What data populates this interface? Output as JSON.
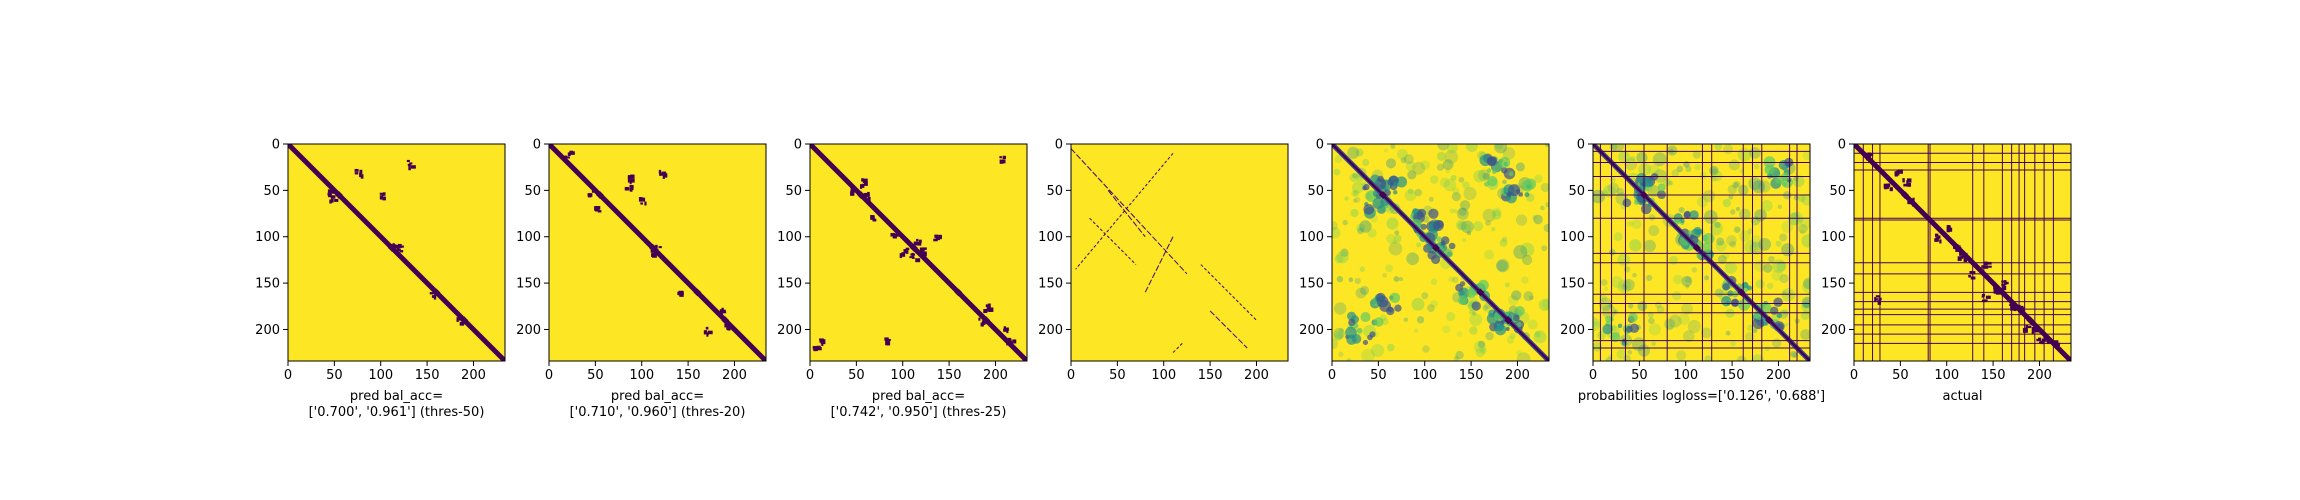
{
  "colors": {
    "background": "#fde725",
    "low": "#440154",
    "mid1": "#3b528b",
    "mid2": "#21918c",
    "mid3": "#5ec962",
    "axis": "#000000"
  },
  "chart_data": [
    {
      "type": "heatmap",
      "panel": "pred_thres50",
      "size": 234,
      "xlim": [
        0,
        234
      ],
      "ylim": [
        234,
        0
      ],
      "xticks": [
        "0",
        "50",
        "100",
        "150",
        "200"
      ],
      "yticks": [
        "0",
        "50",
        "100",
        "150",
        "200"
      ],
      "xlabel_lines": [
        "pred bal_acc=",
        "['0.700', '0.961'] (thres-50)"
      ],
      "metric_label": "bal_acc",
      "metric_values": [
        0.7,
        0.961
      ],
      "threshold": 50,
      "diagonal_band": true,
      "blobs": [
        [
          45,
          52
        ],
        [
          48,
          58
        ],
        [
          100,
          55
        ],
        [
          115,
          108
        ],
        [
          118,
          112
        ],
        [
          155,
          160
        ],
        [
          185,
          190
        ],
        [
          130,
          20
        ],
        [
          75,
          30
        ]
      ],
      "grid_lines": [],
      "cmap": "binary"
    },
    {
      "type": "heatmap",
      "panel": "pred_thres20",
      "size": 234,
      "xlim": [
        0,
        234
      ],
      "ylim": [
        234,
        0
      ],
      "xticks": [
        "0",
        "50",
        "100",
        "150",
        "200"
      ],
      "yticks": [
        "0",
        "50",
        "100",
        "150",
        "200"
      ],
      "xlabel_lines": [
        "pred bal_acc=",
        "['0.710', '0.960'] (thres-20)"
      ],
      "metric_label": "bal_acc",
      "metric_values": [
        0.71,
        0.96
      ],
      "threshold": 20,
      "diagonal_band": true,
      "blobs": [
        [
          20,
          10
        ],
        [
          45,
          50
        ],
        [
          50,
          70
        ],
        [
          85,
          35
        ],
        [
          85,
          45
        ],
        [
          100,
          60
        ],
        [
          112,
          115
        ],
        [
          115,
          112
        ],
        [
          140,
          160
        ],
        [
          185,
          180
        ],
        [
          190,
          195
        ],
        [
          120,
          30
        ],
        [
          170,
          200
        ]
      ],
      "grid_lines": [],
      "cmap": "binary"
    },
    {
      "type": "heatmap",
      "panel": "pred_thres25",
      "size": 234,
      "xlim": [
        0,
        234
      ],
      "ylim": [
        234,
        0
      ],
      "xticks": [
        "0",
        "50",
        "100",
        "150",
        "200"
      ],
      "yticks": [
        "0",
        "50",
        "100",
        "150",
        "200"
      ],
      "xlabel_lines": [
        "pred bal_acc=",
        "['0.742', '0.950'] (thres-25)"
      ],
      "metric_label": "bal_acc",
      "metric_values": [
        0.742,
        0.95
      ],
      "threshold": 25,
      "diagonal_band": true,
      "blobs": [
        [
          45,
          50
        ],
        [
          60,
          55
        ],
        [
          55,
          40
        ],
        [
          65,
          80
        ],
        [
          90,
          95
        ],
        [
          100,
          115
        ],
        [
          110,
          120
        ],
        [
          115,
          105
        ],
        [
          120,
          115
        ],
        [
          135,
          100
        ],
        [
          80,
          210
        ],
        [
          190,
          175
        ],
        [
          185,
          190
        ],
        [
          210,
          200
        ],
        [
          205,
          15
        ],
        [
          215,
          210
        ],
        [
          10,
          210
        ],
        [
          5,
          220
        ]
      ],
      "grid_lines": [],
      "cmap": "binary"
    },
    {
      "type": "heatmap",
      "panel": "sparse_contacts",
      "size": 234,
      "xlim": [
        0,
        234
      ],
      "ylim": [
        234,
        0
      ],
      "xticks": [
        "0",
        "50",
        "100",
        "150",
        "200"
      ],
      "yticks": [
        "0",
        "50",
        "100",
        "150",
        "200"
      ],
      "xlabel_lines": [],
      "diagonal_band": false,
      "blobs": [],
      "grid_lines": [],
      "cmap": "binary"
    },
    {
      "type": "heatmap",
      "panel": "probabilities",
      "size": 234,
      "xlim": [
        0,
        234
      ],
      "ylim": [
        234,
        0
      ],
      "xticks": [
        "0",
        "50",
        "100",
        "150",
        "200"
      ],
      "yticks": [
        "0",
        "50",
        "100",
        "150",
        "200"
      ],
      "xlabel_lines": [],
      "diagonal_band": true,
      "blobs": [
        [
          50,
          60
        ],
        [
          60,
          50
        ],
        [
          100,
          85
        ],
        [
          110,
          100
        ],
        [
          115,
          115
        ],
        [
          150,
          160
        ],
        [
          185,
          190
        ],
        [
          190,
          185
        ],
        [
          200,
          45
        ],
        [
          30,
          200
        ],
        [
          180,
          30
        ],
        [
          60,
          180
        ]
      ],
      "grid_lines": [],
      "cmap": "viridis"
    },
    {
      "type": "heatmap",
      "panel": "probabilities_grid",
      "size": 234,
      "xlim": [
        0,
        234
      ],
      "ylim": [
        234,
        0
      ],
      "xticks": [
        "0",
        "50",
        "100",
        "150",
        "200"
      ],
      "yticks": [
        "0",
        "50",
        "100",
        "150",
        "200"
      ],
      "xlabel_lines": [
        "probabilities logloss=['0.126', '0.688']"
      ],
      "metric_label": "logloss",
      "metric_values": [
        0.126,
        0.688
      ],
      "diagonal_band": true,
      "blobs": [
        [
          50,
          55
        ],
        [
          60,
          50
        ],
        [
          100,
          90
        ],
        [
          112,
          112
        ],
        [
          155,
          160
        ],
        [
          190,
          185
        ],
        [
          30,
          200
        ],
        [
          200,
          30
        ]
      ],
      "grid_lines": [
        8,
        20,
        35,
        55,
        80,
        118,
        128,
        162,
        172,
        182,
        212,
        220
      ],
      "cmap": "viridis"
    },
    {
      "type": "heatmap",
      "panel": "actual",
      "size": 234,
      "xlim": [
        0,
        234
      ],
      "ylim": [
        234,
        0
      ],
      "xticks": [
        "0",
        "50",
        "100",
        "150",
        "200"
      ],
      "yticks": [
        "0",
        "50",
        "100",
        "150",
        "200"
      ],
      "xlabel_lines": [
        "actual"
      ],
      "diagonal_band": true,
      "blobs": [
        [
          15,
          10
        ],
        [
          35,
          45
        ],
        [
          45,
          30
        ],
        [
          55,
          40
        ],
        [
          60,
          60
        ],
        [
          90,
          100
        ],
        [
          100,
          90
        ],
        [
          110,
          110
        ],
        [
          125,
          140
        ],
        [
          140,
          130
        ],
        [
          150,
          155
        ],
        [
          160,
          150
        ],
        [
          170,
          175
        ],
        [
          180,
          175
        ],
        [
          185,
          195
        ],
        [
          195,
          200
        ],
        [
          200,
          210
        ],
        [
          215,
          215
        ],
        [
          25,
          165
        ],
        [
          115,
          120
        ],
        [
          205,
          210
        ],
        [
          140,
          165
        ]
      ],
      "grid_lines": [
        10,
        20,
        28,
        80,
        82,
        128,
        140,
        160,
        170,
        178,
        184,
        195,
        205,
        215
      ],
      "cmap": "binary"
    }
  ]
}
